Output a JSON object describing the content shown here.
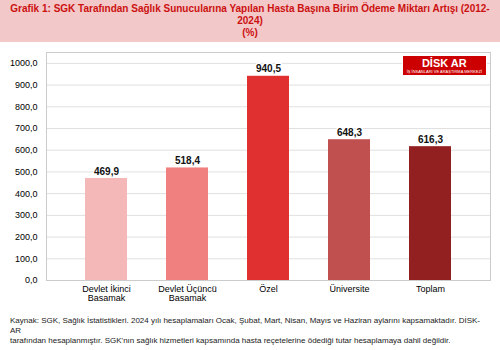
{
  "chart_data": {
    "type": "bar",
    "title": "Grafik 1: SGK Tarafından Sağlık Sunucularına Yapılan Hasta Başına Birim Ödeme Miktarı Artışı (2012-2024)",
    "subtitle": "(%)",
    "caption": "Kaynak: SGK, Sağlık İstatistikleri. 2024 yılı hesaplamaları Ocak, Şubat, Mart, Nisan, Mayıs ve Haziran aylarını kapsamaktadır. DİSK-AR\ntarafından hesaplanmıştır. SGK'nın sağlık hizmetleri kapsamında hasta reçetelerine ödediği tutar hesaplamaya dahil değildir.",
    "annotations": [
      "DİSK",
      "AR",
      "İŞ İNSANLARI VE ARAŞTIRMA MERKEZİ"
    ],
    "categories": [
      "Devlet İkinci\nBasamak",
      "Devlet Üçüncü\nBasamak",
      "Özel",
      "Üniversite",
      "Toplam"
    ],
    "values": [
      469.9,
      518.4,
      940.5,
      648.3,
      616.3
    ],
    "value_labels": [
      "469,9",
      "518,4",
      "940,5",
      "648,3",
      "616,3"
    ],
    "colors": [
      "#f5b8b8",
      "#f08080",
      "#e03030",
      "#c05050",
      "#922020"
    ],
    "ylim": [
      0,
      1050
    ],
    "yticks": [
      {
        "value": 0,
        "label": "0,0"
      },
      {
        "value": 100,
        "label": "100,0"
      },
      {
        "value": 200,
        "label": "200,0"
      },
      {
        "value": 300,
        "label": "300,0"
      },
      {
        "value": 400,
        "label": "400,0"
      },
      {
        "value": 500,
        "label": "500,0"
      },
      {
        "value": 600,
        "label": "600,0"
      },
      {
        "value": 700,
        "label": "700,0"
      },
      {
        "value": 800,
        "label": "800,0"
      },
      {
        "value": 900,
        "label": "900,0"
      },
      {
        "value": 1000,
        "label": "1000,0"
      }
    ],
    "grid": true,
    "data_labels": true
  }
}
